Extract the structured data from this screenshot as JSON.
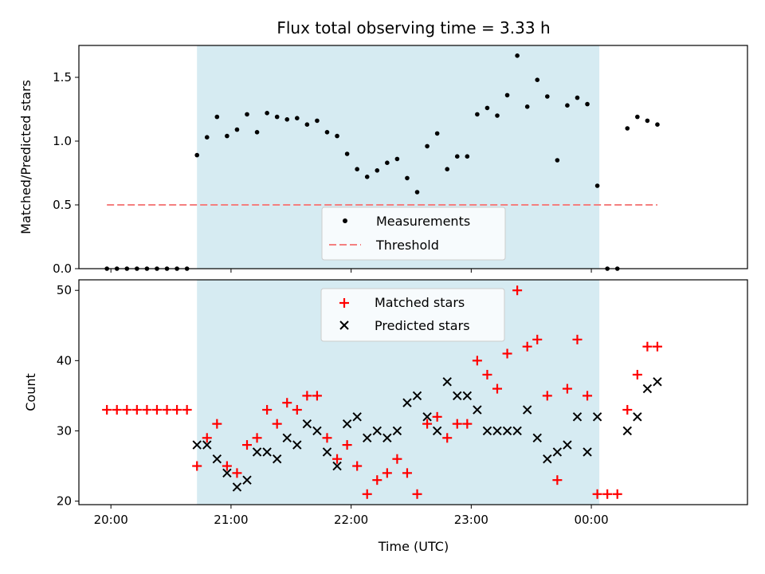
{
  "chart_data": [
    {
      "type": "scatter",
      "title": "Flux total observing time = 3.33 h",
      "xlabel": "",
      "ylabel": "Matched/Predicted stars",
      "ylim": [
        0,
        1.75
      ],
      "yticks": [
        "0.0",
        "0.5",
        "1.0",
        "1.5"
      ],
      "xlim": [
        "19:44",
        "01:18"
      ],
      "shaded_interval": [
        "20:43",
        "00:04"
      ],
      "legend_position": "lower center",
      "series": [
        {
          "name": "Measurements",
          "marker": "dot",
          "color": "#000000",
          "x": [
            "19:58",
            "20:03",
            "20:08",
            "20:13",
            "20:18",
            "20:23",
            "20:28",
            "20:33",
            "20:38",
            "20:43",
            "20:48",
            "20:53",
            "20:58",
            "21:03",
            "21:08",
            "21:13",
            "21:18",
            "21:23",
            "21:28",
            "21:33",
            "21:38",
            "21:43",
            "21:48",
            "21:53",
            "21:58",
            "22:03",
            "22:08",
            "22:13",
            "22:18",
            "22:23",
            "22:28",
            "22:33",
            "22:38",
            "22:43",
            "22:48",
            "22:53",
            "22:58",
            "23:03",
            "23:08",
            "23:13",
            "23:18",
            "23:23",
            "23:28",
            "23:33",
            "23:38",
            "23:43",
            "23:48",
            "23:53",
            "23:58",
            "00:03",
            "00:08",
            "00:13",
            "00:18",
            "00:23",
            "00:28",
            "00:33"
          ],
          "y": [
            0.0,
            0.0,
            0.0,
            0.0,
            0.0,
            0.0,
            0.0,
            0.0,
            0.0,
            0.89,
            1.03,
            1.19,
            1.04,
            1.09,
            1.21,
            1.07,
            1.22,
            1.19,
            1.17,
            1.18,
            1.13,
            1.16,
            1.07,
            1.04,
            0.9,
            0.78,
            0.72,
            0.77,
            0.83,
            0.86,
            0.71,
            0.6,
            0.96,
            1.06,
            0.78,
            0.88,
            0.88,
            1.21,
            1.26,
            1.2,
            1.36,
            1.67,
            1.27,
            1.48,
            1.35,
            0.85,
            1.28,
            1.34,
            1.29,
            0.65,
            0.0,
            0.0,
            1.1,
            1.19,
            1.16,
            1.13
          ]
        },
        {
          "name": "Threshold",
          "marker": "dashed-line",
          "color": "#f47f7f",
          "x": [
            "19:58",
            "00:33"
          ],
          "y": [
            0.5,
            0.5
          ]
        }
      ]
    },
    {
      "type": "scatter",
      "title": "",
      "xlabel": "Time (UTC)",
      "ylabel": "Count",
      "ylim": [
        19.5,
        51.5
      ],
      "yticks": [
        "20",
        "30",
        "40",
        "50"
      ],
      "xticks": [
        "20:00",
        "21:00",
        "22:00",
        "23:00",
        "00:00"
      ],
      "xlim": [
        "19:44",
        "01:18"
      ],
      "shaded_interval": [
        "20:43",
        "00:04"
      ],
      "legend_position": "upper center",
      "series": [
        {
          "name": "Matched stars",
          "marker": "plus",
          "color": "#ff0000",
          "x": [
            "19:58",
            "20:03",
            "20:08",
            "20:13",
            "20:18",
            "20:23",
            "20:28",
            "20:33",
            "20:38",
            "20:43",
            "20:48",
            "20:53",
            "20:58",
            "21:03",
            "21:08",
            "21:13",
            "21:18",
            "21:23",
            "21:28",
            "21:33",
            "21:38",
            "21:43",
            "21:48",
            "21:53",
            "21:58",
            "22:03",
            "22:08",
            "22:13",
            "22:18",
            "22:23",
            "22:28",
            "22:33",
            "22:38",
            "22:43",
            "22:48",
            "22:53",
            "22:58",
            "23:03",
            "23:08",
            "23:13",
            "23:18",
            "23:23",
            "23:28",
            "23:33",
            "23:38",
            "23:43",
            "23:48",
            "23:53",
            "23:58",
            "00:03",
            "00:08",
            "00:13",
            "00:18",
            "00:23",
            "00:28",
            "00:33"
          ],
          "y": [
            33,
            33,
            33,
            33,
            33,
            33,
            33,
            33,
            33,
            25,
            29,
            31,
            25,
            24,
            28,
            29,
            33,
            31,
            34,
            33,
            35,
            35,
            29,
            26,
            28,
            25,
            21,
            23,
            24,
            26,
            24,
            21,
            31,
            32,
            29,
            31,
            31,
            40,
            38,
            36,
            41,
            50,
            42,
            43,
            35,
            23,
            36,
            43,
            35,
            21,
            21,
            21,
            33,
            38,
            42,
            42
          ]
        },
        {
          "name": "Predicted stars",
          "marker": "x",
          "color": "#000000",
          "x": [
            "20:43",
            "20:48",
            "20:53",
            "20:58",
            "21:03",
            "21:08",
            "21:13",
            "21:18",
            "21:23",
            "21:28",
            "21:33",
            "21:38",
            "21:43",
            "21:48",
            "21:53",
            "21:58",
            "22:03",
            "22:08",
            "22:13",
            "22:18",
            "22:23",
            "22:28",
            "22:33",
            "22:38",
            "22:43",
            "22:48",
            "22:53",
            "22:58",
            "23:03",
            "23:08",
            "23:13",
            "23:18",
            "23:23",
            "23:28",
            "23:33",
            "23:38",
            "23:43",
            "23:48",
            "23:53",
            "23:58",
            "00:03",
            "00:18",
            "00:23",
            "00:28",
            "00:33"
          ],
          "y": [
            28,
            28,
            26,
            24,
            22,
            23,
            27,
            27,
            26,
            29,
            28,
            31,
            30,
            27,
            25,
            31,
            32,
            29,
            30,
            29,
            30,
            34,
            35,
            32,
            30,
            37,
            35,
            35,
            33,
            30,
            30,
            30,
            30,
            33,
            29,
            26,
            27,
            28,
            32,
            27,
            32,
            30,
            32,
            36,
            37
          ]
        }
      ]
    }
  ]
}
